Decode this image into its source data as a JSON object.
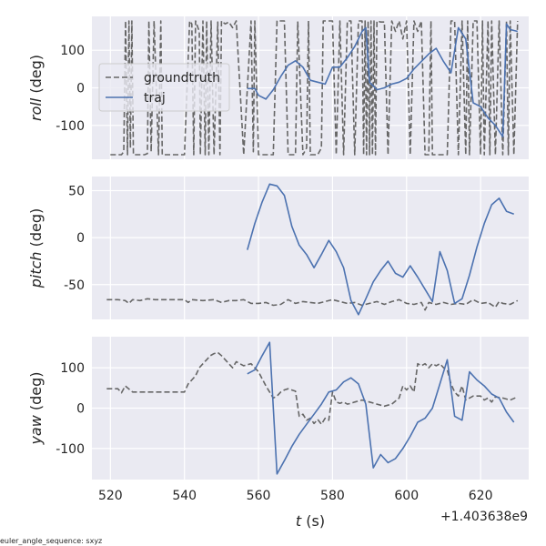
{
  "figure": {
    "xlabel_var": "t",
    "xlabel_unit": " (s)",
    "x_offset_label": "+1.403638e9",
    "footnote": "euler_angle_sequence: sxyz",
    "legend": [
      "groundtruth",
      "traj"
    ]
  },
  "chart_data": [
    {
      "type": "line",
      "ylabel_var": "roll",
      "ylabel_unit": " (deg)",
      "xlim": [
        515,
        633
      ],
      "ylim": [
        -190,
        190
      ],
      "xticks": [
        520,
        540,
        560,
        580,
        600,
        620
      ],
      "yticks": [
        -100,
        0,
        100
      ],
      "legend_position": "upper-left",
      "series": [
        {
          "name": "groundtruth",
          "style": "dashed",
          "color": "#666666",
          "x": [
            520,
            522,
            523,
            523.6,
            524.1,
            524.6,
            525,
            525.4,
            525.8,
            526.2,
            528,
            529.2,
            530,
            530.4,
            531,
            531.8,
            533,
            533.6,
            534,
            534.6,
            538,
            540,
            541.4,
            542,
            542.5,
            543,
            544,
            544.3,
            545,
            545.6,
            546,
            546.6,
            547.2,
            548,
            549,
            549.6,
            550,
            551,
            552,
            553,
            554,
            556,
            558,
            558.6,
            559,
            560,
            563,
            564,
            565,
            566,
            567,
            568,
            570,
            570.6,
            572,
            573,
            573.5,
            574,
            576,
            577,
            577.5,
            580,
            581,
            582,
            583,
            584,
            585,
            586,
            587,
            588,
            588.4,
            588.8,
            589.2,
            589.6,
            590,
            590.4,
            590.8,
            591.2,
            591.6,
            592,
            593,
            594,
            595,
            596,
            597,
            598,
            599,
            600,
            601,
            602,
            603,
            604,
            605,
            606,
            606.6,
            607,
            608,
            609,
            610,
            611,
            612,
            613,
            614,
            615,
            616,
            616.5,
            617,
            618,
            619,
            620,
            620.5,
            621,
            622,
            622.5,
            623,
            624,
            625,
            626,
            627,
            627.5,
            628,
            629,
            630
          ],
          "y": [
            -178,
            -178,
            -178,
            -170,
            178,
            -178,
            178,
            -160,
            178,
            -178,
            -178,
            -178,
            -175,
            178,
            -170,
            178,
            -178,
            178,
            -178,
            -178,
            -178,
            -178,
            178,
            170,
            -178,
            178,
            150,
            -178,
            178,
            -178,
            178,
            -178,
            178,
            -178,
            175,
            -178,
            178,
            170,
            175,
            160,
            178,
            -178,
            178,
            -170,
            178,
            -178,
            -178,
            -178,
            178,
            178,
            178,
            -178,
            -178,
            175,
            -178,
            -160,
            178,
            -178,
            -178,
            -160,
            178,
            178,
            -178,
            178,
            -178,
            178,
            178,
            -178,
            178,
            178,
            -178,
            178,
            -178,
            178,
            -178,
            178,
            -178,
            178,
            -178,
            178,
            175,
            175,
            -178,
            178,
            150,
            178,
            130,
            178,
            -178,
            178,
            150,
            178,
            -178,
            -178,
            178,
            -178,
            -178,
            -178,
            -178,
            -178,
            178,
            178,
            -178,
            178,
            -178,
            178,
            -178,
            178,
            178,
            -178,
            178,
            -178,
            178,
            -178,
            178,
            -178,
            178,
            -178,
            178,
            -178,
            178,
            -178,
            178
          ]
        },
        {
          "name": "traj",
          "style": "solid",
          "color": "#4C72B0",
          "x": [
            557,
            559,
            560,
            562,
            564,
            566,
            568,
            570,
            572,
            574,
            576,
            578,
            580,
            582,
            584,
            586,
            588,
            589,
            590,
            592,
            594,
            596,
            598,
            600,
            602,
            604,
            606,
            608,
            610,
            612,
            614,
            616,
            618,
            620,
            622,
            624,
            626,
            627,
            628,
            630
          ],
          "y": [
            -2,
            -2,
            -20,
            -30,
            -5,
            30,
            60,
            72,
            55,
            20,
            15,
            10,
            55,
            55,
            80,
            110,
            150,
            160,
            15,
            -5,
            0,
            10,
            15,
            25,
            50,
            70,
            90,
            105,
            70,
            40,
            160,
            130,
            -40,
            -50,
            -80,
            -100,
            -130,
            170,
            155,
            150
          ]
        }
      ]
    },
    {
      "type": "line",
      "ylabel_var": "pitch",
      "ylabel_unit": " (deg)",
      "xlim": [
        515,
        633
      ],
      "ylim": [
        -87,
        65
      ],
      "xticks": [
        520,
        540,
        560,
        580,
        600,
        620
      ],
      "yticks": [
        -50,
        0,
        50
      ],
      "series": [
        {
          "name": "groundtruth",
          "style": "dashed",
          "color": "#666666",
          "x": [
            519,
            522,
            524,
            525,
            526,
            528,
            530,
            532,
            536,
            540,
            541,
            542,
            545,
            548,
            550,
            552,
            554,
            556,
            558,
            560,
            562,
            564,
            566,
            568,
            570,
            572,
            574,
            576,
            578,
            580,
            582,
            584,
            586,
            588,
            590,
            592,
            594,
            596,
            598,
            600,
            602,
            604,
            605,
            606,
            608,
            610,
            612,
            614,
            616,
            618,
            620,
            622,
            624,
            625,
            626,
            628,
            630
          ],
          "y": [
            -66,
            -66,
            -67,
            -70,
            -66,
            -67,
            -65,
            -66,
            -66,
            -66,
            -69,
            -66,
            -67,
            -66,
            -69,
            -67,
            -67,
            -66,
            -70,
            -70,
            -69,
            -72,
            -71,
            -66,
            -70,
            -68,
            -69,
            -70,
            -68,
            -66,
            -68,
            -70,
            -69,
            -72,
            -70,
            -68,
            -71,
            -68,
            -66,
            -70,
            -71,
            -69,
            -77,
            -69,
            -71,
            -69,
            -71,
            -70,
            -71,
            -66,
            -70,
            -69,
            -74,
            -68,
            -70,
            -71,
            -67
          ]
        },
        {
          "name": "traj",
          "style": "solid",
          "color": "#4C72B0",
          "x": [
            557,
            559,
            561,
            563,
            565,
            567,
            569,
            571,
            573,
            575,
            577,
            579,
            581,
            583,
            585,
            587,
            589,
            591,
            593,
            595,
            597,
            599,
            601,
            603,
            605,
            607,
            609,
            611,
            613,
            615,
            617,
            619,
            621,
            623,
            625,
            627,
            629
          ],
          "y": [
            -13,
            15,
            38,
            57,
            55,
            45,
            12,
            -8,
            -18,
            -32,
            -18,
            -3,
            -15,
            -32,
            -67,
            -82,
            -65,
            -47,
            -35,
            -25,
            -38,
            -42,
            -30,
            -42,
            -55,
            -68,
            -15,
            -35,
            -70,
            -65,
            -40,
            -10,
            15,
            35,
            42,
            28,
            25
          ]
        }
      ]
    },
    {
      "type": "line",
      "ylabel_var": "yaw",
      "ylabel_unit": " (deg)",
      "xlim": [
        515,
        633
      ],
      "ylim": [
        -177,
        177
      ],
      "xticks": [
        520,
        540,
        560,
        580,
        600,
        620
      ],
      "yticks": [
        -100,
        0,
        100
      ],
      "series": [
        {
          "name": "groundtruth",
          "style": "dashed",
          "color": "#666666",
          "x": [
            519,
            522,
            523,
            524,
            526,
            528,
            530,
            535,
            540,
            541,
            542,
            543,
            544,
            545,
            546,
            547,
            548,
            549,
            550,
            552,
            553,
            554,
            556,
            558,
            560,
            562,
            563,
            564,
            565,
            566,
            567,
            568,
            570,
            571,
            572,
            573,
            574,
            575,
            576,
            577,
            578,
            579,
            580,
            581,
            582,
            583,
            584,
            585,
            586,
            588,
            590,
            592,
            594,
            596,
            598,
            599,
            600,
            601,
            602,
            603,
            604,
            605,
            606,
            607,
            608,
            609,
            610,
            611,
            612,
            613,
            614,
            615,
            616,
            617,
            618,
            620,
            621,
            622,
            623,
            624,
            626,
            628,
            630
          ],
          "y": [
            48,
            48,
            38,
            55,
            40,
            40,
            40,
            40,
            40,
            60,
            70,
            80,
            100,
            110,
            120,
            130,
            135,
            138,
            130,
            110,
            100,
            115,
            105,
            110,
            90,
            55,
            40,
            25,
            30,
            40,
            45,
            48,
            42,
            -20,
            -15,
            -30,
            -25,
            -38,
            -28,
            -40,
            -25,
            -30,
            40,
            15,
            12,
            15,
            10,
            12,
            15,
            20,
            15,
            10,
            5,
            10,
            25,
            55,
            45,
            55,
            40,
            110,
            105,
            110,
            100,
            110,
            105,
            110,
            100,
            95,
            60,
            40,
            30,
            55,
            20,
            25,
            30,
            30,
            20,
            25,
            15,
            28,
            25,
            20,
            28
          ]
        },
        {
          "name": "traj",
          "style": "solid",
          "color": "#4C72B0",
          "x": [
            557,
            559,
            561,
            563,
            565,
            567,
            569,
            571,
            573,
            575,
            577,
            579,
            581,
            583,
            585,
            587,
            589,
            591,
            593,
            595,
            597,
            599,
            601,
            603,
            605,
            607,
            609,
            611,
            613,
            615,
            617,
            619,
            621,
            623,
            625,
            627,
            629
          ],
          "y": [
            85,
            95,
            130,
            163,
            -163,
            -130,
            -95,
            -65,
            -40,
            -15,
            10,
            40,
            45,
            65,
            75,
            60,
            10,
            -148,
            -115,
            -135,
            -125,
            -100,
            -70,
            -35,
            -25,
            0,
            60,
            120,
            -20,
            -30,
            90,
            70,
            55,
            35,
            25,
            -10,
            -35
          ]
        }
      ]
    }
  ]
}
